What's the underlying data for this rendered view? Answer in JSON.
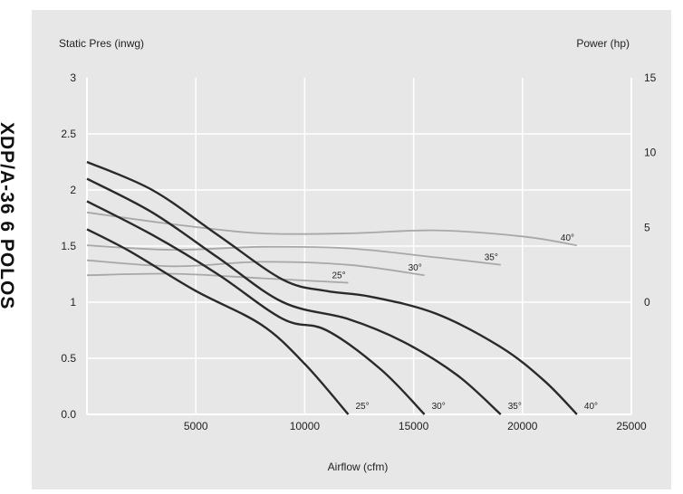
{
  "side_title": "XDP/A-36   6 POLOS",
  "chart_data": {
    "type": "line",
    "title": "",
    "xlabel": "Airflow (cfm)",
    "ylabel": "Static Pres (inwg)",
    "y2label": "Power (hp)",
    "xlim": [
      0,
      25000
    ],
    "ylim": [
      0,
      3
    ],
    "y2lim": [
      -7.5,
      15
    ],
    "x_ticks": [
      5000,
      10000,
      15000,
      20000,
      25000
    ],
    "y_ticks": [
      "0.0",
      "0.5",
      "1",
      "1.5",
      "2",
      "2.5",
      "3"
    ],
    "y2_ticks": [
      "0",
      "5",
      "10",
      "15"
    ],
    "grid": true,
    "pressure_series": [
      {
        "name": "25°",
        "x": [
          0,
          2000,
          5000,
          8000,
          10000,
          12000
        ],
        "y": [
          1.65,
          1.45,
          1.1,
          0.8,
          0.45,
          0.0
        ]
      },
      {
        "name": "30°",
        "x": [
          0,
          3000,
          6000,
          9000,
          11000,
          13500,
          15500
        ],
        "y": [
          1.9,
          1.6,
          1.25,
          0.85,
          0.75,
          0.4,
          0.0
        ]
      },
      {
        "name": "35°",
        "x": [
          0,
          3000,
          6000,
          9000,
          12000,
          14500,
          17000,
          19000
        ],
        "y": [
          2.1,
          1.8,
          1.4,
          1.0,
          0.85,
          0.65,
          0.35,
          0.0
        ]
      },
      {
        "name": "40°",
        "x": [
          0,
          3000,
          6000,
          9000,
          11000,
          13000,
          16000,
          19000,
          21000,
          22500
        ],
        "y": [
          2.25,
          2.0,
          1.6,
          1.2,
          1.1,
          1.05,
          0.9,
          0.6,
          0.3,
          0.0
        ]
      }
    ],
    "power_series": [
      {
        "name": "25°",
        "x": [
          0,
          4000,
          8000,
          12000
        ],
        "y": [
          1.8,
          1.9,
          1.6,
          1.3
        ]
      },
      {
        "name": "30°",
        "x": [
          0,
          4000,
          8000,
          12000,
          15500
        ],
        "y": [
          2.8,
          2.4,
          2.7,
          2.5,
          1.8
        ]
      },
      {
        "name": "35°",
        "x": [
          0,
          4000,
          8000,
          12000,
          16000,
          19000
        ],
        "y": [
          3.8,
          3.5,
          3.7,
          3.6,
          3.0,
          2.5
        ]
      },
      {
        "name": "40°",
        "x": [
          0,
          4000,
          8000,
          12000,
          16000,
          20000,
          22500
        ],
        "y": [
          6.0,
          5.2,
          4.6,
          4.6,
          4.8,
          4.4,
          3.8
        ]
      }
    ]
  }
}
